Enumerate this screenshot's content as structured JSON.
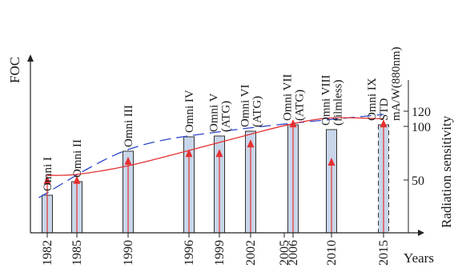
{
  "chart_data": {
    "type": "bar",
    "y_axis_left_label": "FOC",
    "y_axis_right_label": "Radiation sensitivity",
    "x_axis_label": "Years",
    "x_tick_labels": [
      "1982",
      "1985",
      "1990",
      "1996",
      "1999",
      "2002",
      "2005",
      "2006",
      "2010",
      "2015"
    ],
    "right_tick_labels": [
      "50",
      "100",
      "120"
    ],
    "right_axis_values": [
      50,
      100,
      120
    ],
    "right_axis_range": [
      0,
      150
    ],
    "x_range": [
      1980,
      2017
    ],
    "grid": false,
    "bars": [
      {
        "year": 1982,
        "foc": 0.235,
        "sensitivity": 57,
        "label_lines": [
          "Omni I"
        ]
      },
      {
        "year": 1985,
        "foc": 0.32,
        "sensitivity": 57,
        "label_lines": [
          "Omni II"
        ]
      },
      {
        "year": 1990,
        "foc": 0.51,
        "sensitivity": 77,
        "label_lines": [
          "Omni III"
        ]
      },
      {
        "year": 1996,
        "foc": 0.6,
        "sensitivity": 85,
        "label_lines": [
          "Omni IV"
        ]
      },
      {
        "year": 1999,
        "foc": 0.605,
        "sensitivity": 85,
        "label_lines": [
          "Omni V",
          "(ATG)"
        ]
      },
      {
        "year": 2002,
        "foc": 0.635,
        "sensitivity": 95,
        "label_lines": [
          "Omni VI",
          "(ATG)"
        ]
      },
      {
        "year": 2006,
        "foc": 0.675,
        "sensitivity": 116,
        "label_lines": [
          "Omni VII",
          "(ATG)"
        ]
      },
      {
        "year": 2010,
        "foc": 0.645,
        "sensitivity": 76,
        "label_lines": [
          "Omni VIII",
          "(filmless)"
        ]
      },
      {
        "year": 2015,
        "foc": 0.675,
        "sensitivity": 116,
        "label_lines": [
          "Omni IX",
          "STD",
          "mA/W(880nm)"
        ]
      }
    ],
    "foc_trend": [
      [
        1981,
        0.18
      ],
      [
        1990,
        0.48
      ],
      [
        2000,
        0.6
      ],
      [
        2015,
        0.7
      ]
    ],
    "sensitivity_trend": [
      [
        1982,
        60
      ],
      [
        1985,
        61
      ],
      [
        1990,
        70
      ],
      [
        1996,
        86
      ],
      [
        2002,
        103
      ],
      [
        2006,
        114
      ],
      [
        2010,
        120
      ],
      [
        2015,
        119
      ]
    ]
  }
}
